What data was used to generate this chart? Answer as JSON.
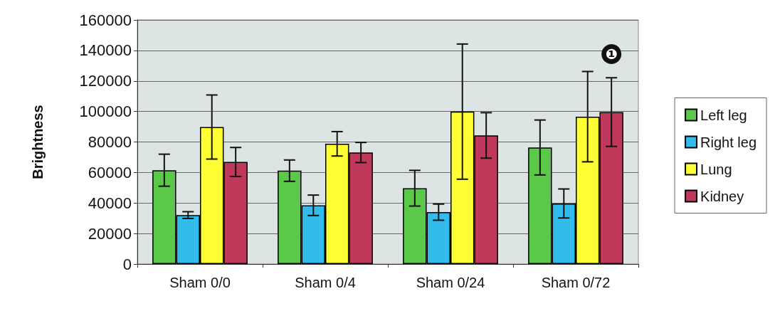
{
  "chart_data": {
    "type": "bar",
    "ylabel": "Brightness",
    "categories": [
      "Sham 0/0",
      "Sham 0/4",
      "Sham 0/24",
      "Sham 0/72"
    ],
    "series": [
      {
        "name": "Left leg",
        "color": "#5cc84a",
        "values": [
          61500,
          61200,
          49700,
          76400
        ],
        "errors": [
          10500,
          7000,
          11700,
          18000
        ]
      },
      {
        "name": "Right leg",
        "color": "#33bbee",
        "values": [
          32100,
          38500,
          34000,
          39700
        ],
        "errors": [
          2200,
          6700,
          5300,
          9500
        ]
      },
      {
        "name": "Lung",
        "color": "#ffff33",
        "values": [
          89800,
          78800,
          99900,
          96600
        ],
        "errors": [
          21000,
          8000,
          44300,
          29600
        ]
      },
      {
        "name": "Kidney",
        "color": "#c0385a",
        "values": [
          66900,
          73100,
          84300,
          99600
        ],
        "errors": [
          9500,
          6600,
          14900,
          22500
        ]
      }
    ],
    "ylim": [
      0,
      160000
    ],
    "yticks": [
      0,
      20000,
      40000,
      60000,
      80000,
      100000,
      120000,
      140000,
      160000
    ],
    "grid": "y",
    "legend": "right",
    "annotations": [
      "❶"
    ]
  }
}
